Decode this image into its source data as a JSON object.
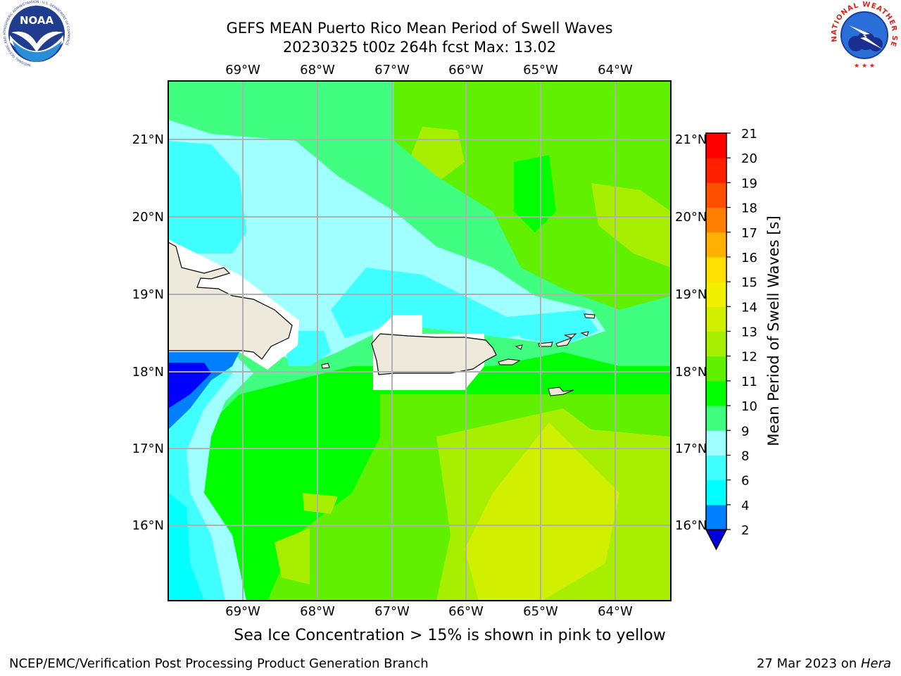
{
  "title_line1": "GEFS MEAN Puerto Rico Mean Period of Swell Waves",
  "title_line2": "20230325 t00z 264h fcst   Max: 13.02",
  "logos": {
    "left": {
      "icon": "noaa-logo",
      "text": "NOAA",
      "ring": "NATIONAL OCEANIC AND ATMOSPHERIC ADMINISTRATION · U.S. DEPARTMENT OF COMMERCE"
    },
    "right": {
      "icon": "nws-logo",
      "ring": "NATIONAL WEATHER SERVICE"
    }
  },
  "map": {
    "lon_labels": [
      "69°W",
      "68°W",
      "67°W",
      "66°W",
      "65°W",
      "64°W"
    ],
    "lat_labels": [
      "21°N",
      "20°N",
      "19°N",
      "18°N",
      "17°N",
      "16°N"
    ],
    "land_color": "#eeeadb",
    "water_mask_color": "#ffffff"
  },
  "colorbar": {
    "label": "Mean Period of Swell Waves [s]",
    "ticks": [
      "2",
      "4",
      "6",
      "8",
      "9",
      "10",
      "11",
      "12",
      "13",
      "14",
      "15",
      "16",
      "17",
      "18",
      "19",
      "20",
      "21"
    ],
    "colors": [
      "#0000ff",
      "#0080ff",
      "#00ffff",
      "#40ffff",
      "#a0ffff",
      "#40ff80",
      "#00ff00",
      "#60f000",
      "#a8ee00",
      "#d0f000",
      "#f0f000",
      "#ffe000",
      "#ffb000",
      "#ff8000",
      "#ff5000",
      "#ff2000",
      "#ff0000"
    ],
    "extend_color": "#0000dd"
  },
  "note": "Sea Ice Concentration > 15% is shown in pink to yellow",
  "footer_left": "NCEP/EMC/Verification Post Processing Product Generation Branch",
  "footer_right_date": "27 Mar 2023 on ",
  "footer_right_machine": "Hera"
}
